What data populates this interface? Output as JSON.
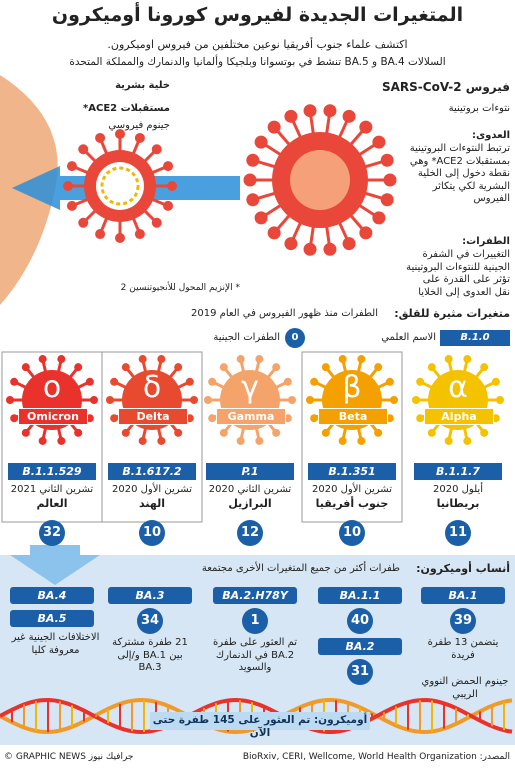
{
  "header": {
    "title": "المتغيرات الجديدة لفيروس كورونا أوميكرون",
    "subtitle": [
      "اكتشف علماء جنوب أفريقيا نوعين مختلفين من فيروس اوميكرون.",
      "السلالات BA.4 و BA.5 تنشط في بوتسوانا وبلجيكا وألمانيا والدنمارك والمملكة المتحدة"
    ]
  },
  "diagram": {
    "human_cell": "خلية بشرية",
    "ace2_receptors": "مستقبلات ACE2*",
    "viral_genome": "جينوم فيروسي",
    "ace2_note": "* الإنزيم المحول للأنجيوتنسين 2",
    "virus_name": "فيروس SARS-CoV-2",
    "spike_proteins": "نتوءات بروتينية",
    "infection": {
      "heading": "العدوى:",
      "text": "ترتبط النتوءات البروتينية بمستقبلات ACE2* وهي نقطة دخول إلى الخلية البشرية لكي يتكاثر الفيروس"
    },
    "mutations": {
      "heading": "الطفرات:",
      "text": "التغييرات في الشفرة الجينية للنتوءات البروتينية تؤثر على القدرة على نقل العدوى إلى الخلايا"
    }
  },
  "variants": {
    "heading": "متغيرات مثيرة للقلق:",
    "subheading": "الطفرات منذ ظهور الفيروس في العام 2019",
    "legend_mutations": {
      "value": 0,
      "label": "الطفرات الجينية"
    },
    "legend_name": {
      "value": "B.1.0",
      "label": "الاسم العلمي"
    },
    "items": [
      {
        "symbol": "α",
        "name": "Alpha",
        "lineage": "B.1.1.7",
        "date": "أيلول 2020",
        "country": "بريطانيا",
        "mutations": 11
      },
      {
        "symbol": "β",
        "name": "Beta",
        "lineage": "B.1.351",
        "date": "تشرين الأول 2020",
        "country": "جنوب أفريقيا",
        "mutations": 10
      },
      {
        "symbol": "γ",
        "name": "Gamma",
        "lineage": "P.1",
        "date": "تشرين الثاني 2020",
        "country": "البرازيل",
        "mutations": 12
      },
      {
        "symbol": "δ",
        "name": "Delta",
        "lineage": "B.1.617.2",
        "date": "تشرين الأول 2020",
        "country": "الهند",
        "mutations": 10
      },
      {
        "symbol": "ο",
        "name": "Omicron",
        "lineage": "B.1.1.529",
        "date": "تشرين الثاني 2021",
        "country": "العالم",
        "mutations": 32
      }
    ]
  },
  "lineages": {
    "heading": "أنساب أوميكرون:",
    "subheading": "طفرات أكثر من جميع المتغيرات الأخرى مجتمعة",
    "items": [
      {
        "name": "BA.1",
        "mutations": 39,
        "note": "يتضمن 13 طفرة فريدة"
      },
      {
        "name": "BA.1.1",
        "mutations": 40
      },
      {
        "name": "BA.2",
        "mutations": 31
      },
      {
        "name": "BA.2.H78Y",
        "mutations": 1,
        "note": "تم العثور على طفرة BA.2 في الدنمارك والسويد"
      },
      {
        "name": "BA.3",
        "mutations": 34,
        "note": "21 طفرة مشتركة بين BA.1 و/إلى BA.3"
      },
      {
        "name": "BA.4"
      },
      {
        "name": "BA.5"
      }
    ],
    "group_note": "الاختلافات الجينية غير معروفة كليا",
    "genome_label": "جينوم الحمض النووي الريبي",
    "banner": "أوميكرون: تم العثور على 145 طفرة حتى الآن"
  },
  "footer": {
    "source": "المصدر: BioRxiv, CERI, Wellcome, World Health Organization",
    "credit": "© GRAPHIC NEWS جرافيك نيوز"
  }
}
